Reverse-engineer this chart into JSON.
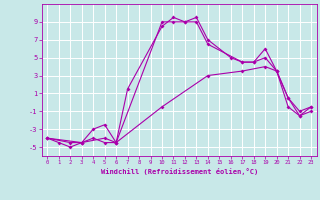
{
  "xlabel": "Windchill (Refroidissement éolien,°C)",
  "xlim": [
    -0.5,
    23.5
  ],
  "ylim": [
    -6,
    11
  ],
  "yticks": [
    -5,
    -3,
    -1,
    1,
    3,
    5,
    7,
    9
  ],
  "xticks": [
    0,
    1,
    2,
    3,
    4,
    5,
    6,
    7,
    8,
    9,
    10,
    11,
    12,
    13,
    14,
    15,
    16,
    17,
    18,
    19,
    20,
    21,
    22,
    23
  ],
  "background_color": "#c8e8e8",
  "grid_color": "#ffffff",
  "line_color": "#aa00aa",
  "series1_x": [
    0,
    1,
    2,
    3,
    4,
    5,
    6,
    10,
    11,
    12,
    13,
    14,
    16,
    17,
    18,
    19,
    20,
    21,
    22,
    23
  ],
  "series1_y": [
    -4.0,
    -4.5,
    -5.0,
    -4.5,
    -4.0,
    -4.5,
    -4.5,
    9.0,
    9.0,
    9.0,
    9.5,
    7.0,
    5.0,
    4.5,
    4.5,
    6.0,
    3.5,
    0.5,
    -1.0,
    -0.5
  ],
  "series2_x": [
    0,
    2,
    3,
    4,
    5,
    6,
    7,
    10,
    11,
    12,
    13,
    14,
    17,
    18,
    19,
    20,
    21,
    22,
    23
  ],
  "series2_y": [
    -4.0,
    -4.5,
    -4.5,
    -3.0,
    -2.5,
    -4.5,
    1.5,
    8.5,
    9.5,
    9.0,
    9.0,
    6.5,
    4.5,
    4.5,
    5.0,
    3.5,
    -0.5,
    -1.5,
    -0.5
  ],
  "series3_x": [
    0,
    3,
    5,
    6,
    10,
    14,
    17,
    19,
    20,
    21,
    22,
    23
  ],
  "series3_y": [
    -4.0,
    -4.5,
    -4.0,
    -4.5,
    -0.5,
    3.0,
    3.5,
    4.0,
    3.5,
    0.5,
    -1.5,
    -1.0
  ]
}
